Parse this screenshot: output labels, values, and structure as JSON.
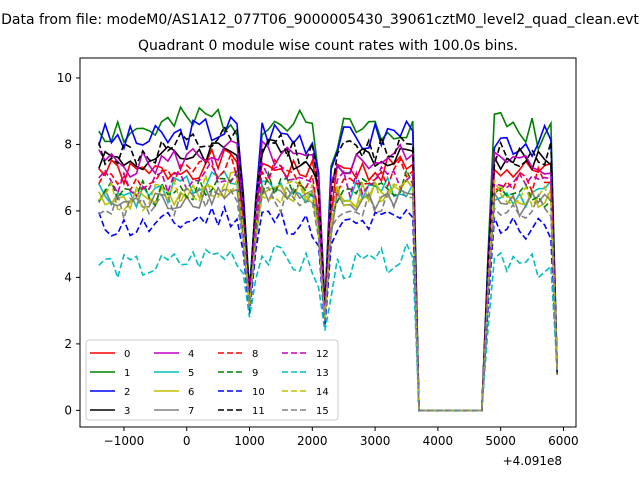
{
  "figure": {
    "suptitle": "Data from file: modeM0/AS1A12_077T06_9000005430_39061cztM0_level2_quad_clean.evt"
  },
  "chart_data": {
    "type": "line",
    "title": "Quadrant 0 module wise count rates with 100.0s bins.",
    "xlabel": "",
    "ylabel": "",
    "x_offset_label": "+4.091e8",
    "xlim": [
      -1700,
      6200
    ],
    "ylim": [
      -0.5,
      10.6
    ],
    "xticks": [
      -1000,
      0,
      1000,
      2000,
      3000,
      4000,
      5000,
      6000
    ],
    "xtick_labels": [
      "−1000",
      "0",
      "1000",
      "2000",
      "3000",
      "4000",
      "5000",
      "6000"
    ],
    "yticks": [
      0,
      2,
      4,
      6,
      8,
      10
    ],
    "ytick_labels": [
      "0",
      "2",
      "4",
      "6",
      "8",
      "10"
    ],
    "grid": false,
    "legend": {
      "position": "lower-left",
      "columns": 4
    },
    "series": [
      {
        "name": "0",
        "color": "#ff0000",
        "dash": "solid",
        "level": 7.3,
        "amp": 0.25,
        "dip1": 4.6,
        "dip2": 3.4,
        "seed": 1
      },
      {
        "name": "1",
        "color": "#008000",
        "dash": "solid",
        "level": 8.6,
        "amp": 0.35,
        "dip1": 5.0,
        "dip2": 3.6,
        "seed": 2
      },
      {
        "name": "2",
        "color": "#0000ff",
        "dash": "solid",
        "level": 8.3,
        "amp": 0.3,
        "dip1": 5.0,
        "dip2": 3.5,
        "seed": 3
      },
      {
        "name": "3",
        "color": "#000000",
        "dash": "solid",
        "level": 7.7,
        "amp": 0.25,
        "dip1": 4.8,
        "dip2": 3.4,
        "seed": 4
      },
      {
        "name": "4",
        "color": "#bf00bf",
        "dash": "solid",
        "level": 7.6,
        "amp": 0.25,
        "dip1": 4.8,
        "dip2": 3.4,
        "seed": 5
      },
      {
        "name": "5",
        "color": "#00bfbf",
        "dash": "solid",
        "level": 6.7,
        "amp": 0.25,
        "dip1": 4.3,
        "dip2": 3.1,
        "seed": 6
      },
      {
        "name": "6",
        "color": "#bfbf00",
        "dash": "solid",
        "level": 6.6,
        "amp": 0.25,
        "dip1": 4.3,
        "dip2": 3.1,
        "seed": 7
      },
      {
        "name": "7",
        "color": "#808080",
        "dash": "solid",
        "level": 6.4,
        "amp": 0.25,
        "dip1": 4.2,
        "dip2": 3.1,
        "seed": 8
      },
      {
        "name": "8",
        "color": "#ff0000",
        "dash": "dashed",
        "level": 7.1,
        "amp": 0.25,
        "dip1": 4.6,
        "dip2": 3.3,
        "seed": 9
      },
      {
        "name": "9",
        "color": "#008000",
        "dash": "dashed",
        "level": 6.7,
        "amp": 0.25,
        "dip1": 4.4,
        "dip2": 3.2,
        "seed": 10
      },
      {
        "name": "10",
        "color": "#0000ff",
        "dash": "dashed",
        "level": 5.7,
        "amp": 0.25,
        "dip1": 3.8,
        "dip2": 2.9,
        "seed": 11
      },
      {
        "name": "11",
        "color": "#000000",
        "dash": "dashed",
        "level": 7.9,
        "amp": 0.3,
        "dip1": 4.9,
        "dip2": 3.5,
        "seed": 12
      },
      {
        "name": "12",
        "color": "#bf00bf",
        "dash": "dashed",
        "level": 7.0,
        "amp": 0.25,
        "dip1": 4.5,
        "dip2": 3.3,
        "seed": 13
      },
      {
        "name": "13",
        "color": "#00bfbf",
        "dash": "dashed",
        "level": 4.5,
        "amp": 0.25,
        "dip1": 3.3,
        "dip2": 2.8,
        "seed": 14
      },
      {
        "name": "14",
        "color": "#bfbf00",
        "dash": "dashed",
        "level": 6.6,
        "amp": 0.25,
        "dip1": 4.3,
        "dip2": 3.1,
        "seed": 15
      },
      {
        "name": "15",
        "color": "#808080",
        "dash": "dashed",
        "level": 6.3,
        "amp": 0.25,
        "dip1": 4.2,
        "dip2": 3.1,
        "seed": 16
      }
    ]
  }
}
